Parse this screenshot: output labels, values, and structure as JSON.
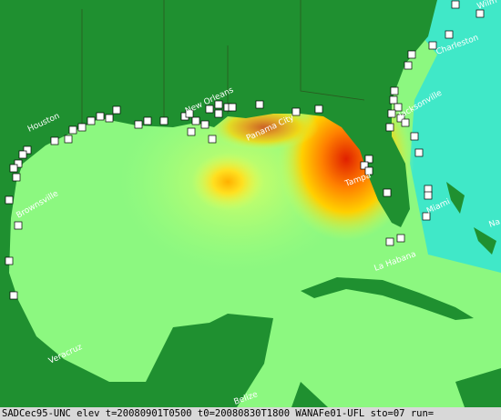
{
  "labels": [
    "Houston",
    "New Orleans",
    "Panama City",
    "Jacksonville",
    "Charleston",
    "Wilm",
    "Tampa",
    "Miami",
    "La Habana",
    "Brownsville",
    "Veracruz",
    "Belize",
    "Na"
  ],
  "footer": "SADCec95-UNC elev t=20080901T0500 t0=20080830T1800 WANAFe01-UFL sto=07 run="
}
